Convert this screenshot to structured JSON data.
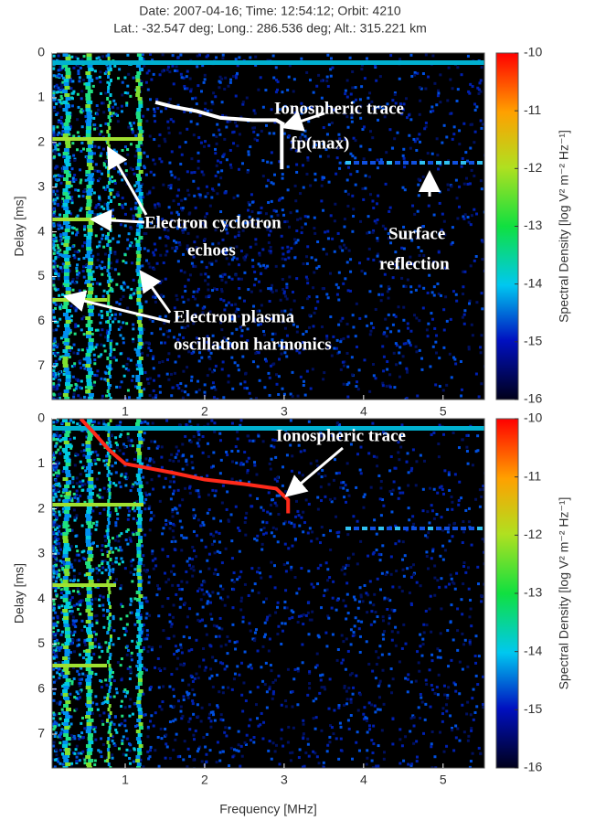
{
  "chart_data": [
    {
      "type": "heatmap",
      "title": [
        "Date: 2007-04-16; Time: 12:54:12; Orbit: 4210",
        "Lat.: -32.547 deg; Long.: 286.536 deg; Alt.: 315.221 km"
      ],
      "ylabel": "Delay [ms]",
      "xlim": [
        0.08,
        5.52
      ],
      "xticks": [
        1,
        2,
        3,
        4,
        5
      ],
      "ylim": [
        0,
        7.75
      ],
      "yticks": [
        0,
        1,
        2,
        3,
        4,
        5,
        6,
        7
      ],
      "colorbar": {
        "label": "Spectral Density [log V² m⁻² Hz⁻¹]",
        "lim": [
          -16,
          -10
        ],
        "ticks": [
          -10,
          -11,
          -12,
          -13,
          -14,
          -15,
          -16
        ]
      },
      "series": [
        {
          "color": "#ffffff",
          "x": [
            1.38,
            1.6,
            1.9,
            2.2,
            2.6,
            2.9,
            3.0
          ],
          "y": [
            1.1,
            1.2,
            1.3,
            1.45,
            1.5,
            1.5,
            1.6
          ]
        },
        {
          "color": "#ffffff",
          "x": [
            2.97,
            2.97
          ],
          "y": [
            1.55,
            2.6
          ]
        }
      ],
      "annotations": [
        "Ionospheric trace",
        "fp(max)",
        "Electron cyclotron",
        "echoes",
        "Surface",
        "reflection",
        "Electron plasma",
        "oscillation harmonics"
      ]
    },
    {
      "type": "heatmap",
      "xlabel": "Frequency [MHz]",
      "ylabel": "Delay [ms]",
      "xlim": [
        0.08,
        5.52
      ],
      "xticks": [
        1,
        2,
        3,
        4,
        5
      ],
      "ylim": [
        0,
        7.75
      ],
      "yticks": [
        0,
        1,
        2,
        3,
        4,
        5,
        6,
        7
      ],
      "colorbar": {
        "label": "Spectral Density [log V² m⁻² Hz⁻¹]",
        "lim": [
          -16,
          -10
        ],
        "ticks": [
          -10,
          -11,
          -12,
          -13,
          -14,
          -15,
          -16
        ]
      },
      "series": [
        {
          "color": "#ff2a1a",
          "x": [
            0.44,
            0.6,
            0.8,
            1.0,
            1.3,
            1.6,
            2.0,
            2.5,
            2.9,
            3.05,
            3.05
          ],
          "y": [
            0,
            0.3,
            0.7,
            1.0,
            1.1,
            1.2,
            1.35,
            1.45,
            1.55,
            1.8,
            2.1
          ]
        }
      ],
      "annotations": [
        "Ionospheric trace"
      ]
    }
  ]
}
